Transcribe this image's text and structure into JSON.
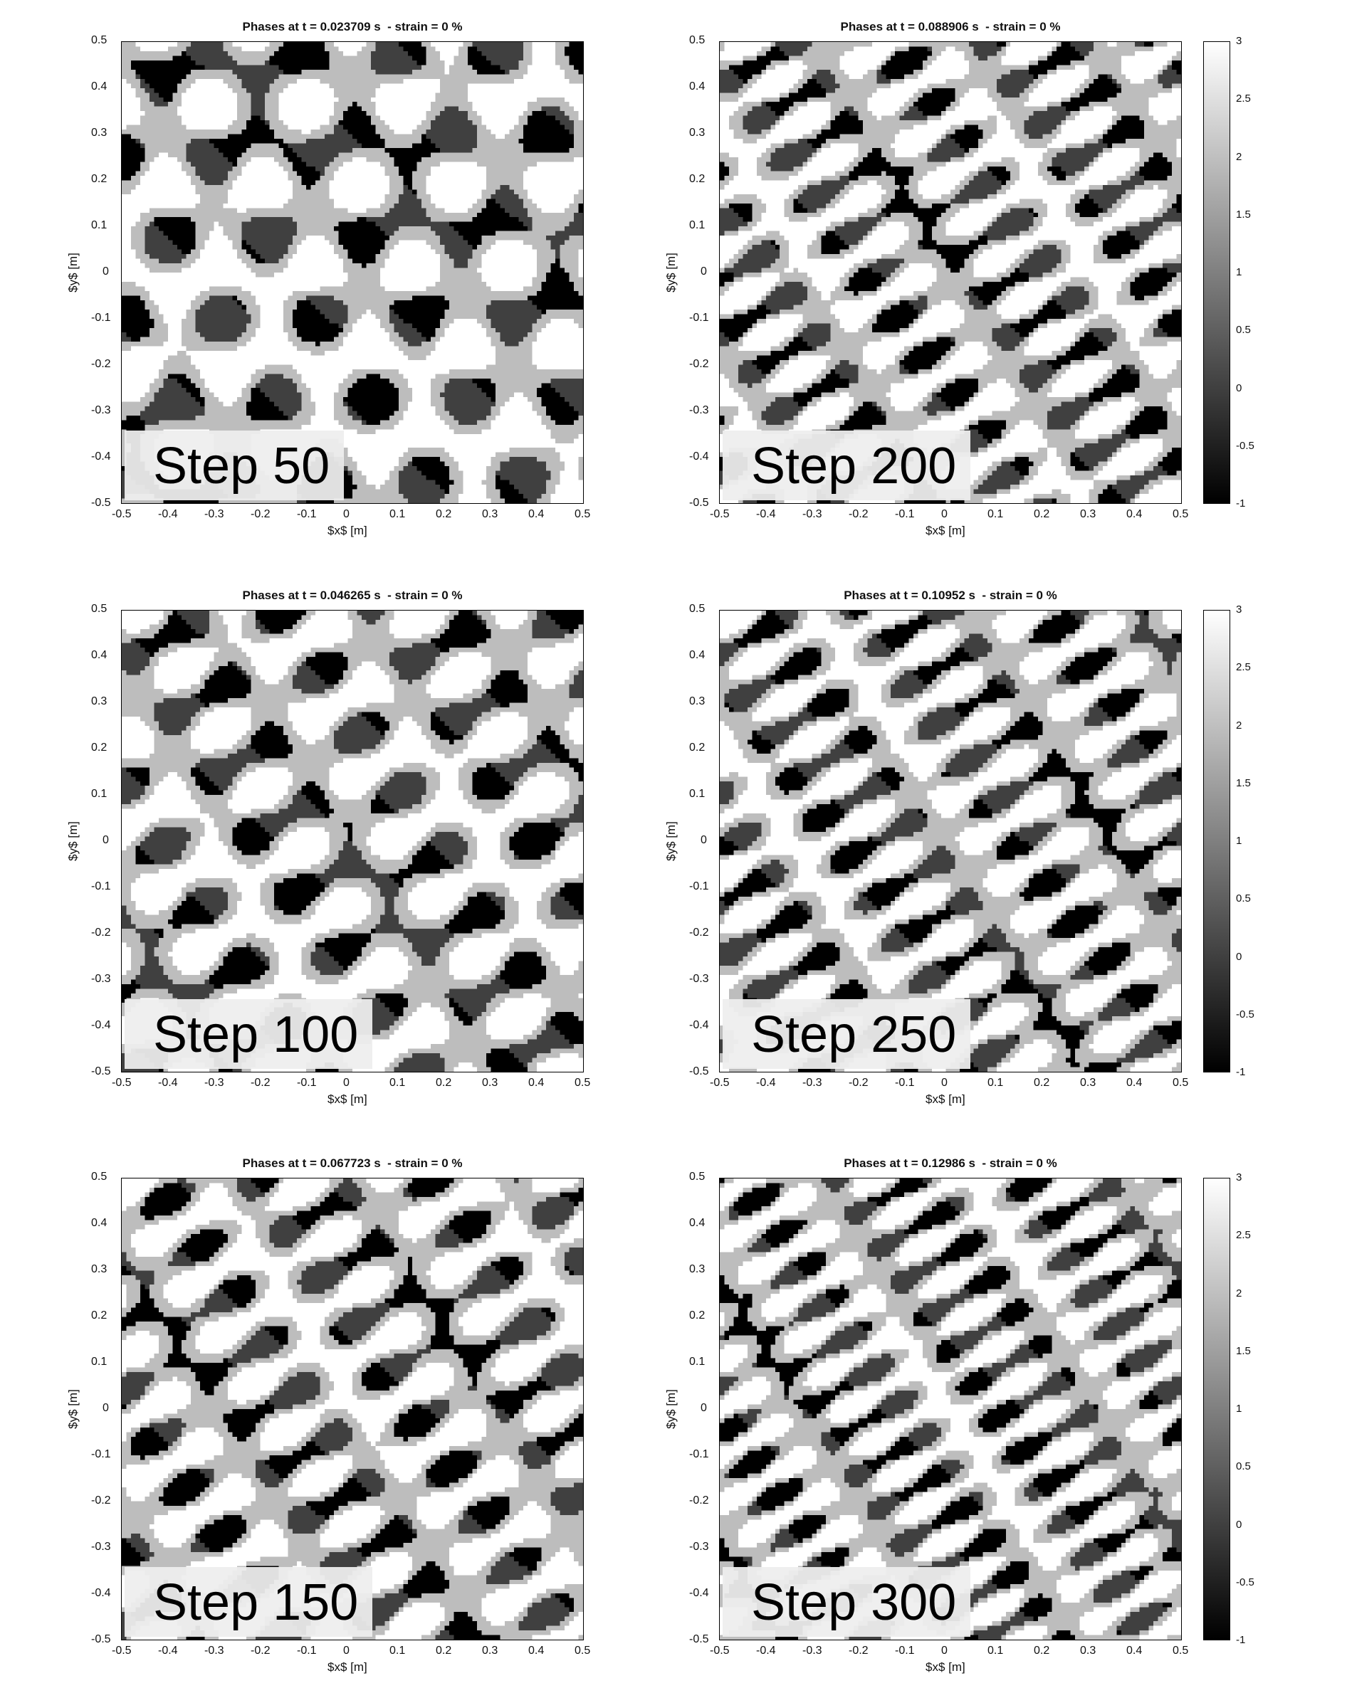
{
  "chart_data": [
    {
      "type": "heatmap",
      "title": "Phases at t = 0.023709 s  - strain = 0 %",
      "step_label": "Step 50",
      "xlabel": "$x$ [m]",
      "ylabel": "$y$ [m]",
      "xlim": [
        -0.5,
        0.5
      ],
      "ylim": [
        -0.5,
        0.5
      ],
      "xticks": [
        "-0.5",
        "-0.4",
        "-0.3",
        "-0.2",
        "-0.1",
        "0",
        "0.1",
        "0.2",
        "0.3",
        "0.4",
        "0.5"
      ],
      "yticks": [
        "0.5",
        "0.4",
        "0.3",
        "0.2",
        "0.1",
        "0",
        "-0.1",
        "-0.2",
        "-0.3",
        "-0.4",
        "-0.5"
      ],
      "colormap": "gray",
      "stretch": 1.2,
      "n": 3,
      "colorbar": false
    },
    {
      "type": "heatmap",
      "title": "Phases at t = 0.088906 s  - strain = 0 %",
      "step_label": "Step 200",
      "xlabel": "$x$ [m]",
      "ylabel": "$y$ [m]",
      "xlim": [
        -0.5,
        0.5
      ],
      "ylim": [
        -0.5,
        0.5
      ],
      "xticks": [
        "-0.5",
        "-0.4",
        "-0.3",
        "-0.2",
        "-0.1",
        "0",
        "0.1",
        "0.2",
        "0.3",
        "0.4",
        "0.5"
      ],
      "yticks": [
        "0.5",
        "0.4",
        "0.3",
        "0.2",
        "0.1",
        "0",
        "-0.1",
        "-0.2",
        "-0.3",
        "-0.4",
        "-0.5"
      ],
      "colormap": "gray",
      "stretch": 3.2,
      "n": 6,
      "colorbar": true
    },
    {
      "type": "heatmap",
      "title": "Phases at t = 0.046265 s  - strain = 0 %",
      "step_label": "Step 100",
      "xlabel": "$x$ [m]",
      "ylabel": "$y$ [m]",
      "xlim": [
        -0.5,
        0.5
      ],
      "ylim": [
        -0.5,
        0.5
      ],
      "xticks": [
        "-0.5",
        "-0.4",
        "-0.3",
        "-0.2",
        "-0.1",
        "0",
        "0.1",
        "0.2",
        "0.3",
        "0.4",
        "0.5"
      ],
      "yticks": [
        "0.5",
        "0.4",
        "0.3",
        "0.2",
        "0.1",
        "0",
        "-0.1",
        "-0.2",
        "-0.3",
        "-0.4",
        "-0.5"
      ],
      "colormap": "gray",
      "stretch": 2.0,
      "n": 4,
      "colorbar": false
    },
    {
      "type": "heatmap",
      "title": "Phases at t = 0.10952 s  - strain = 0 %",
      "step_label": "Step 250",
      "xlabel": "$x$ [m]",
      "ylabel": "$y$ [m]",
      "xlim": [
        -0.5,
        0.5
      ],
      "ylim": [
        -0.5,
        0.5
      ],
      "xticks": [
        "-0.5",
        "-0.4",
        "-0.3",
        "-0.2",
        "-0.1",
        "0",
        "0.1",
        "0.2",
        "0.3",
        "0.4",
        "0.5"
      ],
      "yticks": [
        "0.5",
        "0.4",
        "0.3",
        "0.2",
        "0.1",
        "0",
        "-0.1",
        "-0.2",
        "-0.3",
        "-0.4",
        "-0.5"
      ],
      "colormap": "gray",
      "stretch": 3.6,
      "n": 6,
      "colorbar": true
    },
    {
      "type": "heatmap",
      "title": "Phases at t = 0.067723 s  - strain = 0 %",
      "step_label": "Step 150",
      "xlabel": "$x$ [m]",
      "ylabel": "$y$ [m]",
      "xlim": [
        -0.5,
        0.5
      ],
      "ylim": [
        -0.5,
        0.5
      ],
      "xticks": [
        "-0.5",
        "-0.4",
        "-0.3",
        "-0.2",
        "-0.1",
        "0",
        "0.1",
        "0.2",
        "0.3",
        "0.4",
        "0.5"
      ],
      "yticks": [
        "0.5",
        "0.4",
        "0.3",
        "0.2",
        "0.1",
        "0",
        "-0.1",
        "-0.2",
        "-0.3",
        "-0.4",
        "-0.5"
      ],
      "colormap": "gray",
      "stretch": 2.6,
      "n": 5,
      "colorbar": false
    },
    {
      "type": "heatmap",
      "title": "Phases at t = 0.12986 s  - strain = 0 %",
      "step_label": "Step 300",
      "xlabel": "$x$ [m]",
      "ylabel": "$y$ [m]",
      "xlim": [
        -0.5,
        0.5
      ],
      "ylim": [
        -0.5,
        0.5
      ],
      "xticks": [
        "-0.5",
        "-0.4",
        "-0.3",
        "-0.2",
        "-0.1",
        "0",
        "0.1",
        "0.2",
        "0.3",
        "0.4",
        "0.5"
      ],
      "yticks": [
        "0.5",
        "0.4",
        "0.3",
        "0.2",
        "0.1",
        "0",
        "-0.1",
        "-0.2",
        "-0.3",
        "-0.4",
        "-0.5"
      ],
      "colormap": "gray",
      "stretch": 4.0,
      "n": 7,
      "colorbar": true
    }
  ],
  "colorbar": {
    "min": -1,
    "max": 3,
    "ticks": [
      "3",
      "2.5",
      "2",
      "1.5",
      "1",
      "0.5",
      "0",
      "-0.5",
      "-1"
    ]
  }
}
